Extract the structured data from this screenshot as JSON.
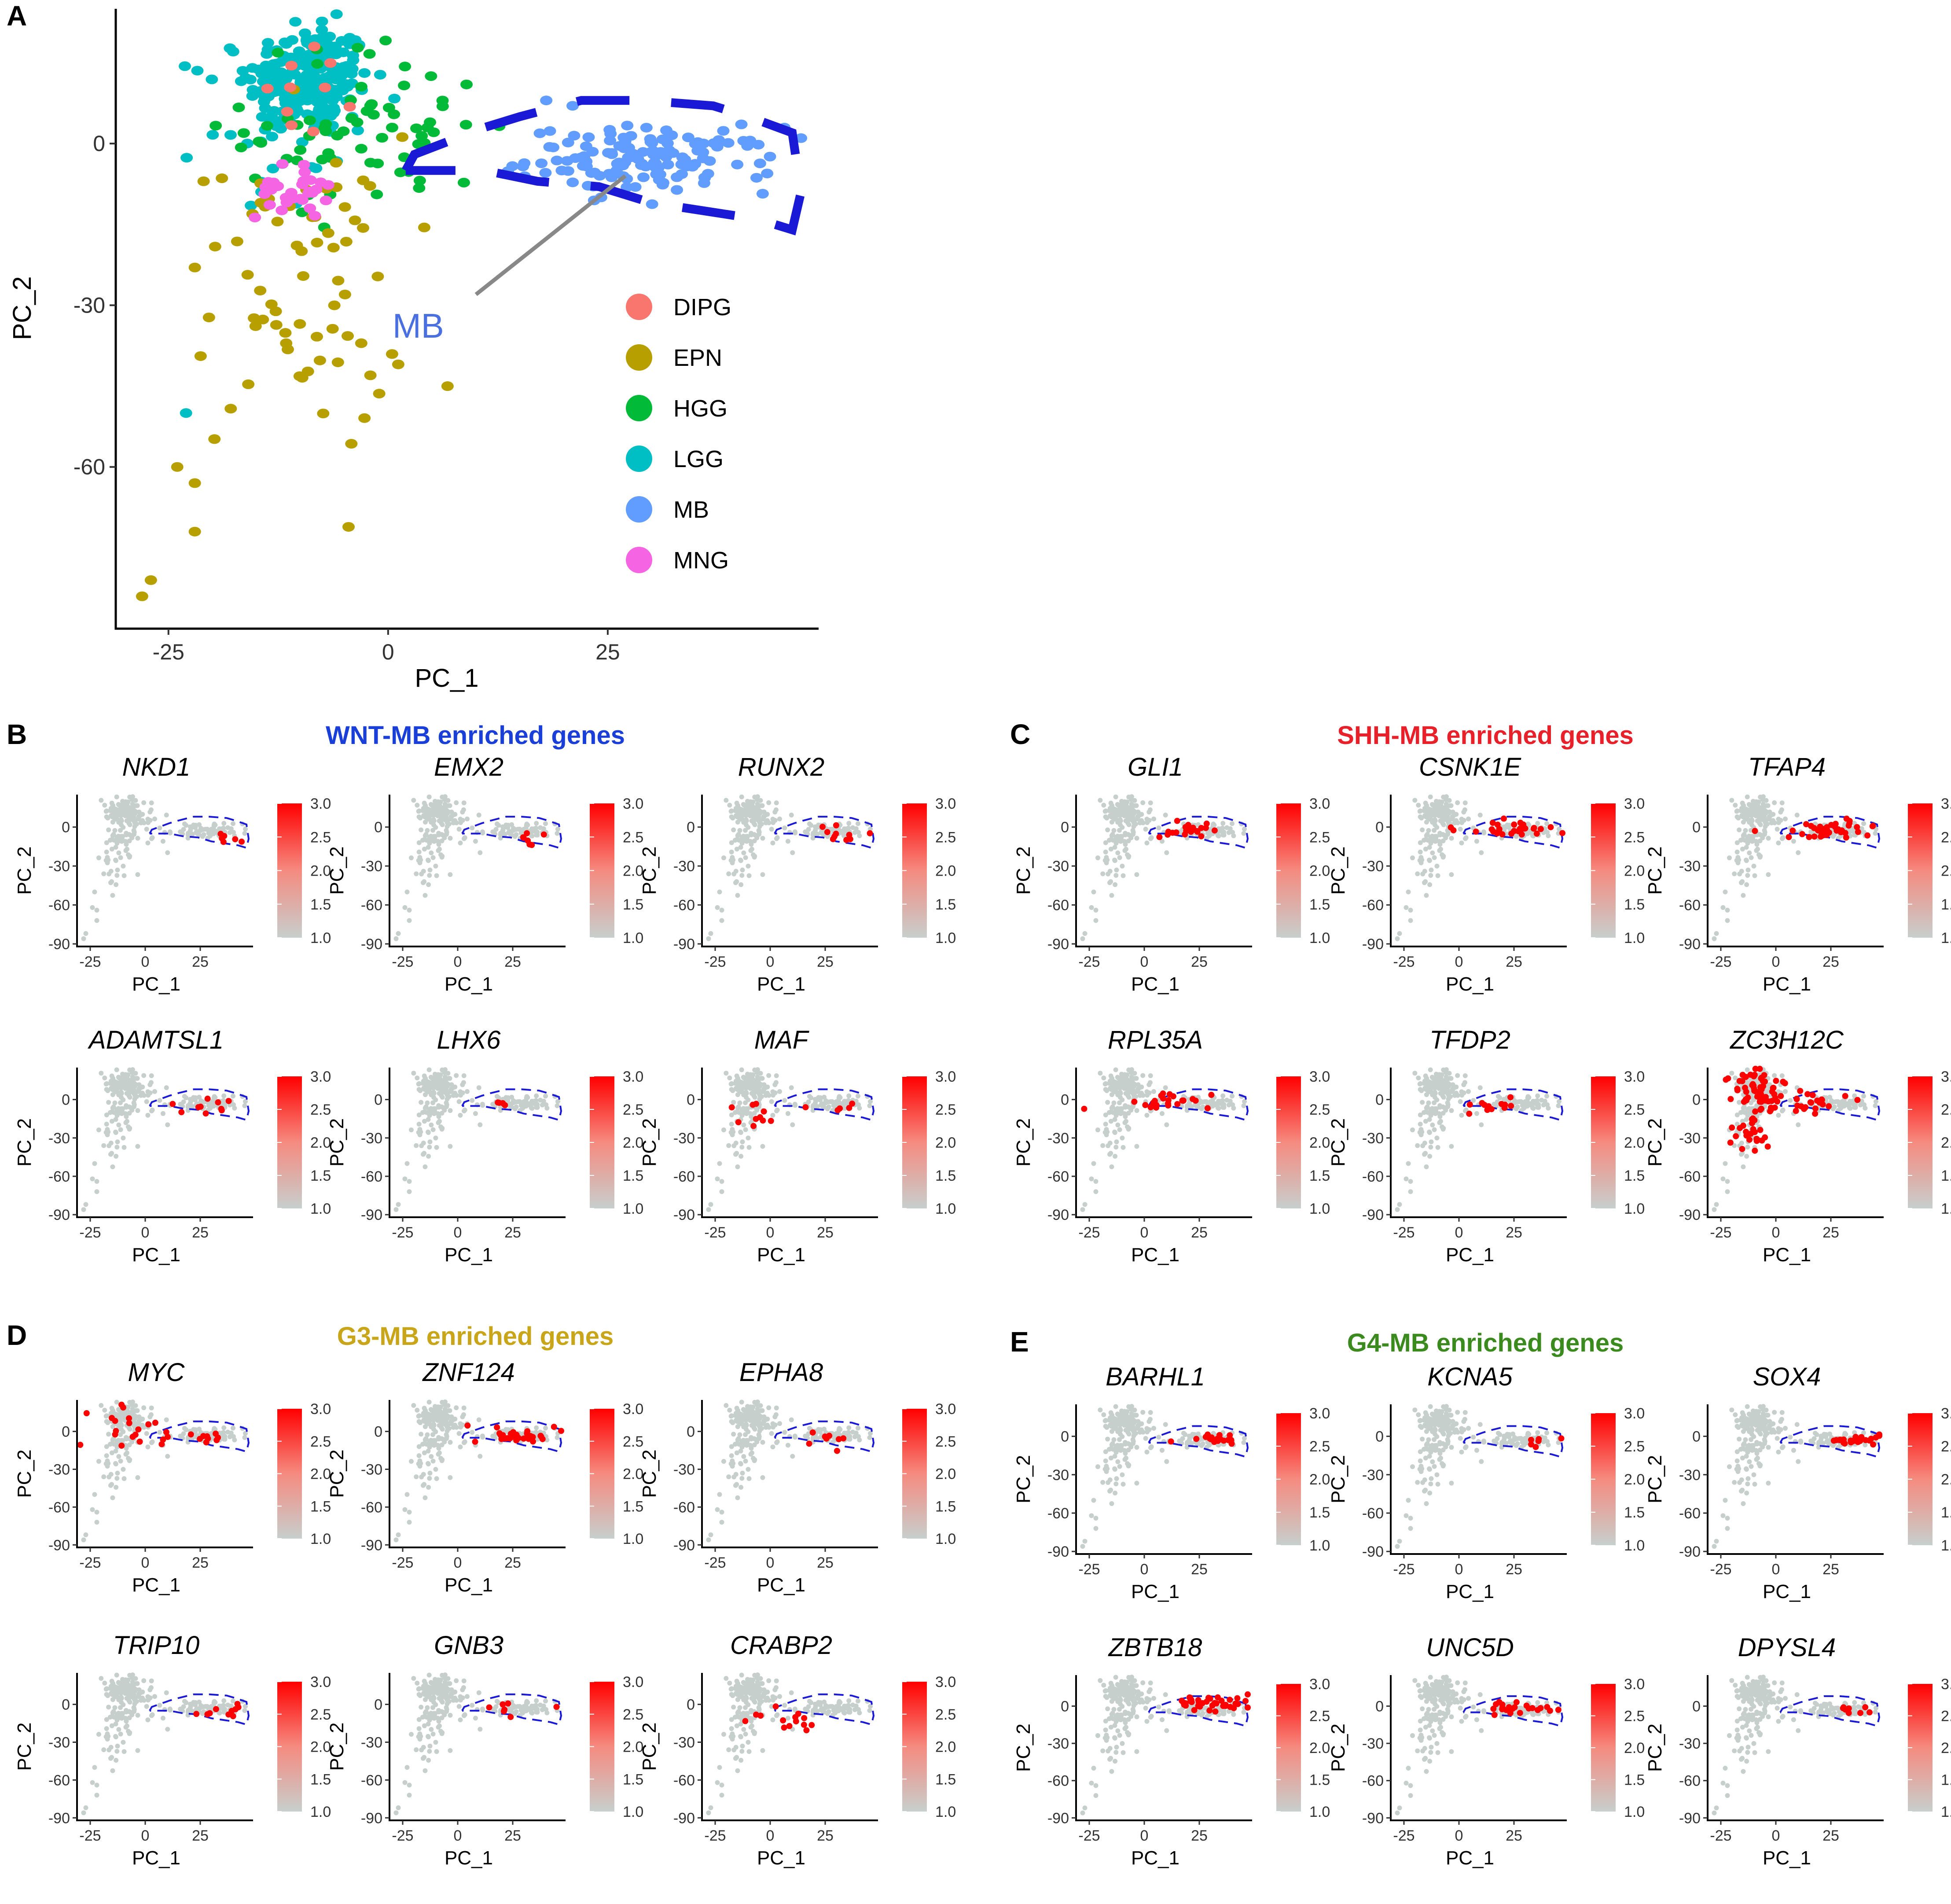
{
  "panel_letters": [
    "A",
    "B",
    "C",
    "D",
    "E"
  ],
  "colors": {
    "DIPG": "#F8766D",
    "EPN": "#B79F00",
    "HGG": "#00BA38",
    "LGG": "#00BFC4",
    "MB": "#619CFF",
    "MNG": "#F564E3",
    "expr_low": "#c7cfcd",
    "expr_high": "#ff0000",
    "mb_outline": "#1a1ad6",
    "wnt": "#1a3fd9",
    "shh": "#e8202a",
    "g3": "#c9a51a",
    "g4": "#3a8a1e"
  },
  "panel_A": {
    "mb_annotation": "MB",
    "legend_title": "",
    "chart_data": {
      "type": "scatter",
      "xlabel": "PC_1",
      "ylabel": "PC_2",
      "xlim": [
        -31,
        49
      ],
      "ylim": [
        -90,
        25
      ],
      "xticks": [
        "-25",
        "0",
        "25"
      ],
      "xtick_values": [
        -25,
        0,
        25
      ],
      "yticks": [
        "0",
        "-30",
        "-60"
      ],
      "ytick_values": [
        0,
        -30,
        -60
      ],
      "legend": [
        "DIPG",
        "EPN",
        "HGG",
        "LGG",
        "MB",
        "MNG"
      ],
      "clusters": [
        {
          "name": "LGG",
          "n": 230,
          "cx": -9,
          "cy": 12,
          "sx": 3.5,
          "sy": 5
        },
        {
          "name": "LGG",
          "n": 40,
          "cx": -13,
          "cy": 4,
          "sx": 4,
          "sy": 8
        },
        {
          "name": "HGG",
          "n": 70,
          "cx": -2,
          "cy": 3,
          "sx": 7,
          "sy": 8
        },
        {
          "name": "EPN",
          "n": 70,
          "cx": -10,
          "cy": -28,
          "sx": 6,
          "sy": 15
        },
        {
          "name": "MB",
          "n": 140,
          "cx": 30,
          "cy": -3,
          "sx": 7,
          "sy": 3
        },
        {
          "name": "MNG",
          "n": 30,
          "cx": -11,
          "cy": -9,
          "sx": 2,
          "sy": 2.5
        },
        {
          "name": "DIPG",
          "n": 10,
          "cx": -9,
          "cy": 10,
          "sx": 3,
          "sy": 4
        }
      ],
      "extra_points": [
        {
          "name": "EPN",
          "x": -28,
          "y": -84
        },
        {
          "name": "EPN",
          "x": -27,
          "y": -81
        },
        {
          "name": "EPN",
          "x": -24,
          "y": -60
        },
        {
          "name": "EPN",
          "x": -22,
          "y": -63
        },
        {
          "name": "EPN",
          "x": -22,
          "y": -72
        },
        {
          "name": "LGG",
          "x": -23,
          "y": -50
        },
        {
          "name": "EPN",
          "x": -22,
          "y": -23
        },
        {
          "name": "EPN",
          "x": -21,
          "y": -7
        },
        {
          "name": "MB",
          "x": 18,
          "y": 8
        },
        {
          "name": "MB",
          "x": 21,
          "y": 7
        }
      ],
      "mb_region_dashed_outline": [
        [
          2,
          -5
        ],
        [
          3,
          -2
        ],
        [
          11,
          3
        ],
        [
          15,
          5
        ],
        [
          22,
          8
        ],
        [
          29,
          8
        ],
        [
          37,
          7
        ],
        [
          41,
          5
        ],
        [
          46,
          2
        ],
        [
          47,
          -9
        ],
        [
          46,
          -16
        ],
        [
          42,
          -14
        ],
        [
          38,
          -13
        ],
        [
          34,
          -12
        ],
        [
          30,
          -11
        ],
        [
          24,
          -8
        ],
        [
          17,
          -7
        ],
        [
          11,
          -5
        ],
        [
          2,
          -5
        ]
      ]
    }
  },
  "sections": [
    {
      "letter": "B",
      "title": "WNT-MB enriched genes",
      "genes": [
        "NKD1",
        "EMX2",
        "RUNX2",
        "ADAMTSL1",
        "LHX6",
        "MAF"
      ]
    },
    {
      "letter": "C",
      "title": "SHH-MB enriched genes",
      "genes": [
        "GLI1",
        "CSNK1E",
        "TFAP4",
        "RPL35A",
        "TFDP2",
        "ZC3H12C"
      ]
    },
    {
      "letter": "D",
      "title": "G3-MB enriched genes",
      "genes": [
        "MYC",
        "ZNF124",
        "EPHA8",
        "TRIP10",
        "GNB3",
        "CRABP2"
      ]
    },
    {
      "letter": "E",
      "title": "G4-MB enriched genes",
      "genes": [
        "BARHL1",
        "KCNA5",
        "SOX4",
        "ZBTB18",
        "UNC5D",
        "DPYSL4"
      ]
    }
  ],
  "feature_plots": {
    "type": "scatter",
    "xlabel": "PC_1",
    "ylabel": "PC_2",
    "xlim": [
      -31,
      49
    ],
    "ylim": [
      -92,
      25
    ],
    "xticks": [
      "-25",
      "0",
      "25"
    ],
    "xtick_values": [
      -25,
      0,
      25
    ],
    "yticks": [
      "0",
      "-30",
      "-60",
      "-90"
    ],
    "ytick_values": [
      0,
      -30,
      -60,
      -90
    ],
    "colorbar_ticks": [
      "3.0",
      "2.5",
      "2.0",
      "1.5",
      "1.0"
    ],
    "colorbar_range": [
      1.0,
      3.0
    ],
    "expression_patterns": {
      "NKD1": [
        {
          "cx": 37,
          "cy": -8,
          "sx": 4,
          "sy": 3,
          "n": 6
        }
      ],
      "EMX2": [
        {
          "cx": 35,
          "cy": -9,
          "sx": 5,
          "sy": 3,
          "n": 7
        }
      ],
      "RUNX2": [
        {
          "cx": 30,
          "cy": -7,
          "sx": 8,
          "sy": 3,
          "n": 10
        }
      ],
      "ADAMTSL1": [
        {
          "cx": 28,
          "cy": -6,
          "sx": 9,
          "sy": 3,
          "n": 10
        }
      ],
      "LHX6": [
        {
          "cx": 22,
          "cy": -2,
          "sx": 4,
          "sy": 2,
          "n": 4
        }
      ],
      "MAF": [
        {
          "cx": -10,
          "cy": -10,
          "sx": 4,
          "sy": 5,
          "n": 10
        },
        {
          "cx": 30,
          "cy": -8,
          "sx": 7,
          "sy": 3,
          "n": 5
        }
      ],
      "GLI1": [
        {
          "cx": 22,
          "cy": -2,
          "sx": 8,
          "sy": 3,
          "n": 20
        }
      ],
      "CSNK1E": [
        {
          "cx": 25,
          "cy": -2,
          "sx": 9,
          "sy": 3,
          "n": 30
        }
      ],
      "TFAP4": [
        {
          "cx": 25,
          "cy": -3,
          "sx": 10,
          "sy": 4,
          "n": 40
        }
      ],
      "RPL35A": [
        {
          "cx": 12,
          "cy": -2,
          "sx": 10,
          "sy": 3,
          "n": 25
        }
      ],
      "TFDP2": [
        {
          "cx": 15,
          "cy": -4,
          "sx": 10,
          "sy": 3,
          "n": 12
        }
      ],
      "ZC3H12C": [
        {
          "cx": -8,
          "cy": 5,
          "sx": 6,
          "sy": 10,
          "n": 60
        },
        {
          "cx": -12,
          "cy": -25,
          "sx": 6,
          "sy": 10,
          "n": 25
        },
        {
          "cx": 15,
          "cy": -1,
          "sx": 12,
          "sy": 4,
          "n": 25
        }
      ],
      "MYC": [
        {
          "cx": -10,
          "cy": 2,
          "sx": 8,
          "sy": 10,
          "n": 18
        },
        {
          "cx": 25,
          "cy": -4,
          "sx": 10,
          "sy": 3,
          "n": 12
        }
      ],
      "ZNF124": [
        {
          "cx": 28,
          "cy": -3,
          "sx": 9,
          "sy": 3,
          "n": 35
        }
      ],
      "EPHA8": [
        {
          "cx": 30,
          "cy": -6,
          "sx": 8,
          "sy": 3,
          "n": 8
        }
      ],
      "TRIP10": [
        {
          "cx": 35,
          "cy": -6,
          "sx": 7,
          "sy": 3,
          "n": 10
        }
      ],
      "GNB3": [
        {
          "cx": 30,
          "cy": -5,
          "sx": 8,
          "sy": 3,
          "n": 7
        }
      ],
      "CRABP2": [
        {
          "cx": 10,
          "cy": -13,
          "sx": 14,
          "sy": 4,
          "n": 14
        }
      ],
      "BARHL1": [
        {
          "cx": 35,
          "cy": -2,
          "sx": 7,
          "sy": 2,
          "n": 18
        }
      ],
      "KCNA5": [
        {
          "cx": 34,
          "cy": -3,
          "sx": 6,
          "sy": 2,
          "n": 6
        }
      ],
      "SOX4": [
        {
          "cx": 37,
          "cy": -3,
          "sx": 7,
          "sy": 2,
          "n": 25
        }
      ],
      "ZBTB18": [
        {
          "cx": 30,
          "cy": 2,
          "sx": 10,
          "sy": 3,
          "n": 40
        }
      ],
      "UNC5D": [
        {
          "cx": 28,
          "cy": -1,
          "sx": 9,
          "sy": 3,
          "n": 22
        }
      ],
      "DPYSL4": [
        {
          "cx": 38,
          "cy": -2,
          "sx": 6,
          "sy": 2,
          "n": 8
        }
      ]
    }
  }
}
